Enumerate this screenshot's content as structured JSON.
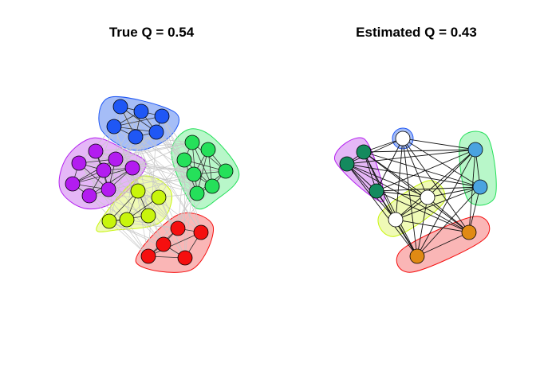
{
  "panels": {
    "left": {
      "title": "True Q = 0.54",
      "communities": [
        {
          "name": "blue",
          "color": "#1f57f5",
          "fill": "#5b87f0"
        },
        {
          "name": "green",
          "color": "#25e05a",
          "fill": "#7ef09c"
        },
        {
          "name": "purple",
          "color": "#b31cf0",
          "fill": "#cf7cf0"
        },
        {
          "name": "yellow-green",
          "color": "#c8f50c",
          "fill": "#e2f57a"
        },
        {
          "name": "red",
          "color": "#f50f0f",
          "fill": "#f57a7a"
        }
      ],
      "node_count": 30
    },
    "right": {
      "title": "Estimated Q = 0.43",
      "node_colors": {
        "teal": "#148a5e",
        "sky-blue": "#4aa3e0",
        "orange": "#e08a14",
        "white": "#ffffff"
      },
      "node_count": 10
    }
  },
  "colors": {
    "edge_light": "#c8c8c8",
    "edge_dark": "#111111",
    "node_border": "#000000"
  }
}
